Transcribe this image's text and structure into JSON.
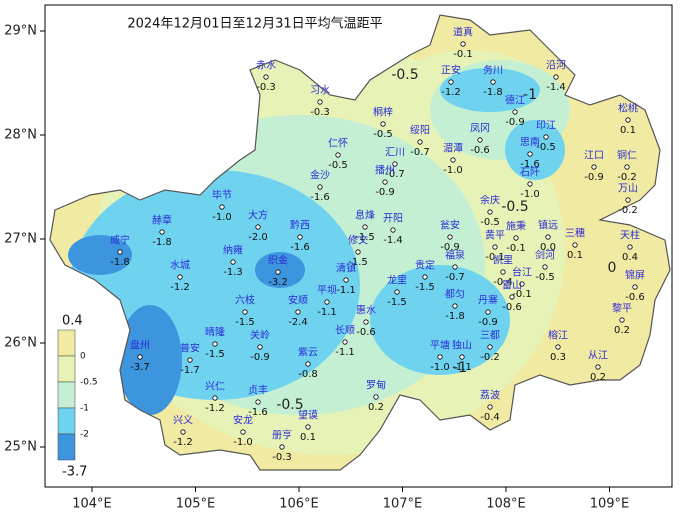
{
  "title": "2024年12月01日至12月31日平均气温距平",
  "axes": {
    "lon_ticks": [
      {
        "value": 104,
        "label": "104°E"
      },
      {
        "value": 105,
        "label": "105°E"
      },
      {
        "value": 106,
        "label": "106°E"
      },
      {
        "value": 107,
        "label": "107°E"
      },
      {
        "value": 108,
        "label": "108°E"
      },
      {
        "value": 109,
        "label": "109°E"
      }
    ],
    "lat_ticks": [
      {
        "value": 29,
        "label": "29°N"
      },
      {
        "value": 28,
        "label": "28°N"
      },
      {
        "value": 27,
        "label": "27°N"
      },
      {
        "value": 26,
        "label": "26°N"
      },
      {
        "value": 25,
        "label": "25°N"
      }
    ]
  },
  "legend": {
    "levels": [
      0.4,
      0,
      -0.5,
      -1,
      -2,
      -3.7
    ],
    "colors": [
      "#f1eaa2",
      "#e6f2b6",
      "#c4efd2",
      "#6fd3f0",
      "#3d95de"
    ]
  },
  "stations": {
    "names": [
      "道真",
      "正安",
      "务川",
      "沿河",
      "赤水",
      "习水",
      "桐梓",
      "绥阳",
      "凤冈",
      "德江",
      "印江",
      "思南",
      "松桃",
      "仁怀",
      "汇川",
      "湄潭",
      "江口",
      "铜仁",
      "播州",
      "金沙",
      "石阡",
      "毕节",
      "余庆",
      "万山",
      "赫章",
      "大方",
      "黔西",
      "息烽",
      "开阳",
      "施秉",
      "镇远",
      "三穗",
      "天柱",
      "瓮安",
      "黄平",
      "凯里",
      "剑河",
      "台江",
      "锦屏",
      "威宁",
      "纳雍",
      "织金",
      "修文",
      "清镇",
      "龙里",
      "贵定",
      "福泉",
      "都匀",
      "水城",
      "六枝",
      "安顺",
      "平坝",
      "长顺",
      "惠水",
      "丹寨",
      "雷山",
      "榕江",
      "黎平",
      "从江",
      "盘州",
      "普安",
      "晴隆",
      "关岭",
      "紫云",
      "三都",
      "平塘",
      "独山",
      "罗甸",
      "兴仁",
      "贞丰",
      "望谟",
      "荔波",
      "兴义",
      "安龙",
      "册亨"
    ],
    "values": [
      -0.1,
      -1.2,
      -1.8,
      -1.4,
      -0.3,
      -0.3,
      -0.5,
      -0.7,
      -0.6,
      -0.9,
      -0.5,
      -1.6,
      0.1,
      -0.5,
      -0.7,
      -1.0,
      -0.9,
      -0.2,
      -0.9,
      -1.6,
      -1.0,
      -1.0,
      -0.5,
      -0.2,
      -1.8,
      -2.0,
      -1.6,
      -1.5,
      -1.4,
      -0.1,
      0.0,
      0.1,
      0.4,
      -0.9,
      -0.1,
      -0.4,
      -0.5,
      -0.1,
      -0.6,
      -1.8,
      -1.3,
      -3.2,
      -1.5,
      -1.1,
      -1.5,
      -1.5,
      -0.7,
      -1.8,
      -1.2,
      -1.5,
      -2.4,
      -1.1,
      -1.1,
      -0.6,
      -0.9,
      -0.6,
      0.3,
      0.2,
      0.2,
      -3.7,
      -1.7,
      -1.5,
      -0.9,
      -0.8,
      -0.2,
      -1.0,
      -1.1,
      0.2,
      -1.2,
      -1.6,
      0.1,
      -0.4,
      -1.2,
      -1.0,
      -0.3
    ],
    "value_labels": [
      "-0.1",
      "-1.2",
      "-1.8",
      "-1.4",
      "-0.3",
      "-0.3",
      "-0.5",
      "-0.7",
      "-0.6",
      "-0.9",
      "-0.5",
      "-1.6",
      "0.1",
      "-0.5",
      "-0.7",
      "-1.0",
      "-0.9",
      "-0.2",
      "-0.9",
      "-1.6",
      "-1.0",
      "-1.0",
      "-0.5",
      "-0.2",
      "-1.8",
      "-2.0",
      "-1.6",
      "-1.5",
      "-1.4",
      "-0.1",
      "0.0",
      "0.1",
      "0.4",
      "-0.9",
      "-0.1",
      "-0.4",
      "-0.5",
      "-0.1",
      "-0.6",
      "-1.8",
      "-1.3",
      "-3.2",
      "-1.5",
      "-1.1",
      "-1.5",
      "-1.5",
      "-0.7",
      "-1.8",
      "-1.2",
      "-1.5",
      "-2.4",
      "-1.1",
      "-1.1",
      "-0.6",
      "-0.9",
      "-0.6",
      "0.3",
      "0.2",
      "0.2",
      "-3.7",
      "-1.7",
      "-1.5",
      "-0.9",
      "-0.8",
      "-0.2",
      "-1.0",
      "-1.1",
      "0.2",
      "-1.2",
      "-1.6",
      "0.1",
      "-0.4",
      "-1.2",
      "-1.0",
      "-0.3"
    ]
  },
  "contour_labels": [
    -0.5,
    -1,
    -0.5,
    0,
    -0.5,
    -1
  ]
}
